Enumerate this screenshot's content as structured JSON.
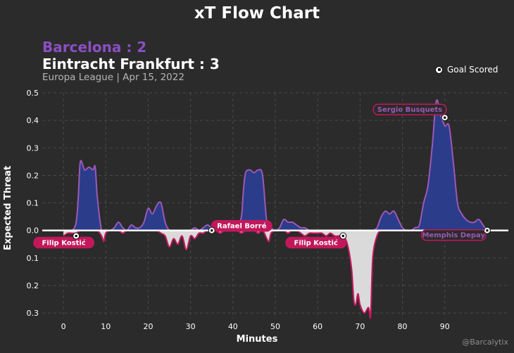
{
  "title": "xT Flow Chart",
  "home_team_label": "Barcelona : 2",
  "away_team_label": "Eintracht Frankfurt : 3",
  "match_info": "Europa League | Apr 15, 2022",
  "legend_goal": "Goal Scored",
  "credit": "@Barcalytix",
  "colors": {
    "background": "#2b2b2b",
    "home_fill": "#2b3d8f",
    "home_line": "#9b59b6",
    "away_fill": "#e4e4e4",
    "away_line": "#c2185b",
    "zero_line": "#ffffff",
    "grid": "#4a4a4a"
  },
  "chart_data": {
    "type": "area",
    "title": "xT Flow Chart",
    "xlabel": "Minutes",
    "ylabel": "Expected Threat",
    "xlim": [
      -5,
      105
    ],
    "ylim": [
      -0.32,
      0.5
    ],
    "x_ticks": [
      0,
      10,
      20,
      30,
      40,
      50,
      60,
      70,
      80,
      90
    ],
    "y_ticks": [
      {
        "value": 0.5,
        "label": "0.5"
      },
      {
        "value": 0.4,
        "label": "0.4"
      },
      {
        "value": 0.3,
        "label": "0.3"
      },
      {
        "value": 0.2,
        "label": "0.2"
      },
      {
        "value": 0.1,
        "label": "0.1"
      },
      {
        "value": 0.0,
        "label": "0.0"
      },
      {
        "value": -0.1,
        "label": "0.1"
      },
      {
        "value": -0.2,
        "label": "0.2"
      },
      {
        "value": -0.3,
        "label": "0.3"
      }
    ],
    "grid": true,
    "series": [
      {
        "team": "home",
        "x": [
          0,
          2,
          3,
          3.5,
          4,
          5,
          6,
          7,
          7.5,
          8,
          9,
          10,
          11,
          12,
          13,
          14,
          15,
          16,
          17,
          18,
          19,
          20,
          21,
          22,
          23,
          24,
          25,
          26,
          27,
          28,
          29,
          30,
          31,
          32,
          33,
          34,
          35,
          36,
          37,
          38,
          39,
          40,
          41,
          42,
          42.5,
          43,
          44,
          45,
          46,
          47,
          48,
          49,
          50,
          51,
          52,
          53,
          54,
          55,
          56,
          57,
          58,
          59,
          60,
          61,
          62,
          63,
          64,
          65,
          66,
          67,
          68,
          69,
          70,
          71,
          72,
          73,
          74,
          75,
          76,
          77,
          78,
          79,
          80,
          81,
          82,
          83,
          84,
          85,
          86,
          87,
          88,
          89,
          90,
          91,
          92,
          93,
          94,
          95,
          96,
          97,
          98,
          99,
          100
        ],
        "y": [
          0,
          0,
          0.03,
          0.12,
          0.25,
          0.22,
          0.23,
          0.22,
          0.23,
          0.12,
          0,
          0,
          0,
          0.01,
          0.03,
          0.01,
          0,
          0.02,
          0.01,
          0.01,
          0.03,
          0.08,
          0.06,
          0.09,
          0.1,
          0.03,
          0,
          0,
          0,
          0,
          0,
          0,
          0.01,
          0,
          0.01,
          0.02,
          0.01,
          0.02,
          0.01,
          0.01,
          0.01,
          0.01,
          0.02,
          0.05,
          0.15,
          0.21,
          0.22,
          0.21,
          0.22,
          0.2,
          0.03,
          0.01,
          0,
          0.01,
          0.04,
          0.03,
          0.03,
          0.02,
          0.01,
          0.01,
          0,
          0,
          0,
          0,
          0,
          0,
          0,
          0,
          0,
          0,
          0,
          0,
          0,
          0,
          0,
          0,
          0.01,
          0.05,
          0.07,
          0.06,
          0.07,
          0.04,
          0.01,
          0,
          0,
          0.01,
          0.02,
          0.1,
          0.16,
          0.3,
          0.47,
          0.42,
          0.38,
          0.38,
          0.25,
          0.1,
          0.06,
          0.04,
          0.03,
          0.03,
          0.04,
          0.02,
          0
        ],
        "goals": [
          {
            "minute": 90,
            "xt": 0.41,
            "player": "Sergio Busquets"
          },
          {
            "minute": 100,
            "xt": 0.0,
            "player": "Memphis Depay"
          }
        ]
      },
      {
        "team": "away",
        "x": [
          0,
          1,
          2,
          3,
          4,
          5,
          6,
          7,
          8,
          9,
          9.5,
          10,
          11,
          12,
          13,
          14,
          15,
          16,
          17,
          18,
          19,
          20,
          21,
          22,
          23,
          24,
          25,
          26,
          27,
          28,
          29,
          30,
          31,
          32,
          33,
          34,
          35,
          36,
          37,
          38,
          39,
          40,
          41,
          42,
          43,
          44,
          45,
          46,
          47,
          48,
          48.5,
          49,
          50,
          51,
          52,
          53,
          54,
          55,
          56,
          57,
          58,
          59,
          60,
          61,
          62,
          63,
          64,
          65,
          66,
          67,
          68,
          68.5,
          69,
          69.5,
          70,
          71,
          72,
          72.5,
          73,
          74,
          75,
          76,
          77,
          78,
          79,
          80,
          81,
          82,
          83,
          84,
          85,
          86,
          87,
          88,
          89,
          90,
          91,
          92,
          93,
          94,
          95,
          96,
          97,
          98,
          99,
          100
        ],
        "y": [
          -0.02,
          -0.01,
          -0.01,
          -0.01,
          0,
          0,
          0,
          0,
          0,
          -0.02,
          -0.04,
          -0.01,
          0,
          0,
          0,
          -0.01,
          0,
          0,
          0,
          0,
          0,
          0,
          0,
          0,
          -0.01,
          -0.02,
          -0.06,
          -0.03,
          -0.05,
          -0.02,
          -0.07,
          -0.02,
          -0.03,
          -0.01,
          -0.01,
          0,
          0,
          0,
          -0.01,
          0,
          0,
          0,
          0,
          -0.01,
          0,
          0,
          0,
          -0.01,
          0,
          -0.03,
          -0.04,
          -0.01,
          0,
          0,
          0,
          -0.01,
          0,
          0,
          -0.01,
          -0.02,
          -0.01,
          -0.01,
          -0.01,
          -0.01,
          -0.02,
          -0.01,
          -0.02,
          -0.02,
          -0.02,
          -0.05,
          -0.14,
          -0.25,
          -0.27,
          -0.23,
          -0.27,
          -0.3,
          -0.28,
          -0.31,
          -0.1,
          -0.02,
          0,
          0,
          0,
          0,
          0,
          0,
          0,
          0,
          0,
          0,
          0,
          0,
          0,
          0,
          0,
          0,
          0,
          0,
          0,
          0,
          0,
          0,
          0,
          0,
          0,
          0
        ],
        "goals": [
          {
            "minute": 3,
            "xt": -0.02,
            "player": "Filip Kostić"
          },
          {
            "minute": 35,
            "xt": 0.0,
            "player": "Rafael Borré"
          },
          {
            "minute": 66,
            "xt": -0.02,
            "player": "Filip Kostić"
          }
        ]
      }
    ]
  }
}
